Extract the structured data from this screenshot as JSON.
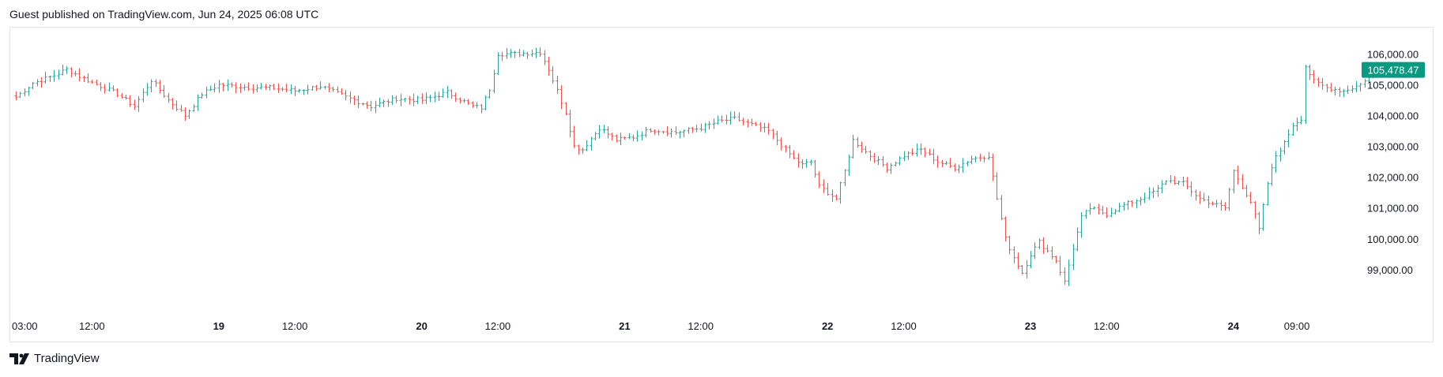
{
  "header": {
    "attribution": "Guest published on TradingView.com, Jun 24, 2025 06:08 UTC"
  },
  "footer": {
    "logo_text": "TradingView",
    "logo_icon": "tradingview-logo-icon"
  },
  "colors": {
    "up": "#26a69a",
    "down": "#ef5350",
    "last_price_bg": "#089981",
    "axis_text": "#131722",
    "border": "#e0e3eb"
  },
  "chart_data": {
    "type": "bar",
    "style": "ohlc",
    "ylim": [
      98000,
      106800
    ],
    "y_ticks": [
      99000,
      100000,
      101000,
      102000,
      103000,
      104000,
      105000,
      106000
    ],
    "y_tick_labels": [
      "99,000.00",
      "100,000.00",
      "101,000.00",
      "102,000.00",
      "103,000.00",
      "104,000.00",
      "105,000.00",
      "106,000.00"
    ],
    "x_ticks": [
      {
        "label": "03:00",
        "idx": 0,
        "bold": false
      },
      {
        "label": "12:00",
        "idx": 18,
        "bold": false
      },
      {
        "label": "19",
        "idx": 48,
        "bold": true
      },
      {
        "label": "12:00",
        "idx": 66,
        "bold": false
      },
      {
        "label": "20",
        "idx": 96,
        "bold": true
      },
      {
        "label": "12:00",
        "idx": 114,
        "bold": false
      },
      {
        "label": "21",
        "idx": 144,
        "bold": true
      },
      {
        "label": "12:00",
        "idx": 162,
        "bold": false
      },
      {
        "label": "22",
        "idx": 192,
        "bold": true
      },
      {
        "label": "12:00",
        "idx": 210,
        "bold": false
      },
      {
        "label": "23",
        "idx": 240,
        "bold": true
      },
      {
        "label": "12:00",
        "idx": 258,
        "bold": false
      },
      {
        "label": "24",
        "idx": 288,
        "bold": true
      },
      {
        "label": "09:00",
        "idx": 303,
        "bold": false
      }
    ],
    "last_price": 105478.47,
    "last_price_label": "105,478.47",
    "close_path": [
      [
        0,
        104600
      ],
      [
        4,
        105050
      ],
      [
        9,
        105300
      ],
      [
        12,
        105500
      ],
      [
        16,
        105200
      ],
      [
        24,
        104700
      ],
      [
        28,
        104300
      ],
      [
        32,
        105150
      ],
      [
        36,
        104500
      ],
      [
        40,
        104000
      ],
      [
        44,
        104700
      ],
      [
        48,
        105000
      ],
      [
        56,
        104900
      ],
      [
        60,
        104900
      ],
      [
        66,
        104800
      ],
      [
        72,
        104950
      ],
      [
        78,
        104600
      ],
      [
        84,
        104300
      ],
      [
        90,
        104550
      ],
      [
        96,
        104500
      ],
      [
        102,
        104750
      ],
      [
        108,
        104300
      ],
      [
        110,
        104250
      ],
      [
        112,
        104850
      ],
      [
        114,
        106000
      ],
      [
        118,
        106000
      ],
      [
        124,
        106050
      ],
      [
        126,
        105500
      ],
      [
        128,
        104800
      ],
      [
        130,
        104100
      ],
      [
        132,
        103000
      ],
      [
        134,
        102900
      ],
      [
        138,
        103600
      ],
      [
        142,
        103200
      ],
      [
        146,
        103300
      ],
      [
        150,
        103550
      ],
      [
        156,
        103450
      ],
      [
        162,
        103600
      ],
      [
        166,
        103800
      ],
      [
        170,
        103900
      ],
      [
        174,
        103700
      ],
      [
        178,
        103500
      ],
      [
        180,
        103200
      ],
      [
        184,
        102600
      ],
      [
        186,
        102400
      ],
      [
        188,
        102500
      ],
      [
        190,
        101700
      ],
      [
        194,
        101300
      ],
      [
        196,
        102200
      ],
      [
        198,
        103200
      ],
      [
        202,
        102700
      ],
      [
        206,
        102300
      ],
      [
        210,
        102700
      ],
      [
        214,
        102900
      ],
      [
        218,
        102500
      ],
      [
        222,
        102300
      ],
      [
        226,
        102600
      ],
      [
        230,
        102700
      ],
      [
        232,
        101300
      ],
      [
        234,
        100000
      ],
      [
        236,
        99400
      ],
      [
        238,
        98900
      ],
      [
        240,
        99500
      ],
      [
        242,
        99900
      ],
      [
        244,
        99600
      ],
      [
        246,
        99300
      ],
      [
        248,
        98600
      ],
      [
        250,
        99700
      ],
      [
        252,
        100700
      ],
      [
        254,
        101000
      ],
      [
        258,
        100800
      ],
      [
        262,
        101100
      ],
      [
        266,
        101300
      ],
      [
        270,
        101600
      ],
      [
        272,
        101900
      ],
      [
        276,
        101800
      ],
      [
        280,
        101300
      ],
      [
        282,
        101200
      ],
      [
        286,
        101000
      ],
      [
        288,
        102200
      ],
      [
        290,
        101700
      ],
      [
        292,
        101200
      ],
      [
        294,
        100300
      ],
      [
        296,
        101800
      ],
      [
        298,
        102700
      ],
      [
        300,
        103100
      ],
      [
        302,
        103700
      ],
      [
        304,
        103900
      ],
      [
        305,
        105600
      ],
      [
        307,
        105100
      ],
      [
        310,
        104900
      ],
      [
        314,
        104800
      ],
      [
        318,
        105000
      ],
      [
        321,
        105478
      ]
    ]
  }
}
